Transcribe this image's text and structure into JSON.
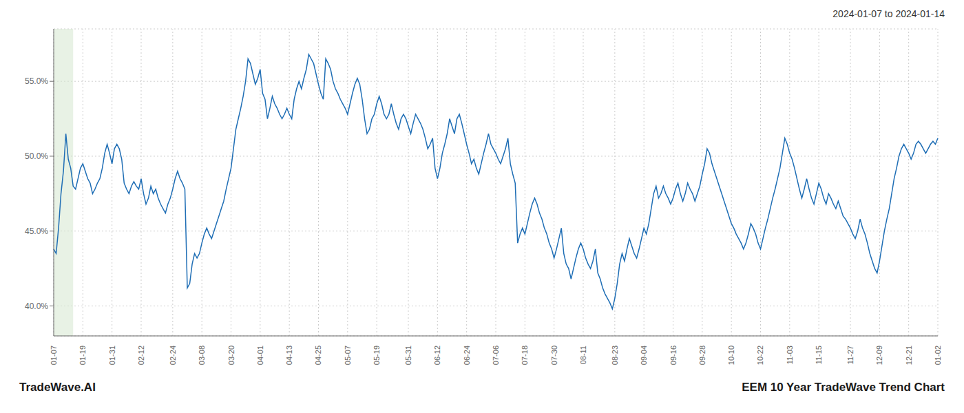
{
  "chart_data": {
    "type": "line",
    "title": "2024-01-07 to 2024-01-14",
    "annotations": [
      "TradeWave.AI",
      "EEM 10 Year TradeWave Trend Chart"
    ],
    "color": "#1f6eb5",
    "grid": true,
    "ylim": [
      38.0,
      58.5
    ],
    "yticks": [
      {
        "value": 40.0,
        "label": "40.0%"
      },
      {
        "value": 45.0,
        "label": "45.0%"
      },
      {
        "value": 50.0,
        "label": "50.0%"
      },
      {
        "value": 55.0,
        "label": "55.0%"
      }
    ],
    "highlight": {
      "start": 0,
      "end": 8,
      "color": "#d6e8d0"
    },
    "categories": [
      "01-07",
      null,
      null,
      null,
      null,
      null,
      null,
      null,
      null,
      null,
      null,
      null,
      "01-19",
      null,
      null,
      null,
      null,
      null,
      null,
      null,
      null,
      null,
      null,
      null,
      "01-31",
      null,
      null,
      null,
      null,
      null,
      null,
      null,
      null,
      null,
      null,
      null,
      "02-12",
      null,
      null,
      null,
      null,
      null,
      null,
      null,
      null,
      null,
      null,
      null,
      null,
      "02-24",
      null,
      null,
      null,
      null,
      null,
      null,
      null,
      null,
      null,
      null,
      null,
      "03-08",
      null,
      null,
      null,
      null,
      null,
      null,
      null,
      null,
      null,
      null,
      null,
      "03-20",
      null,
      null,
      null,
      null,
      null,
      null,
      null,
      null,
      null,
      null,
      null,
      "04-01",
      null,
      null,
      null,
      null,
      null,
      null,
      null,
      null,
      null,
      null,
      null,
      "04-13",
      null,
      null,
      null,
      null,
      null,
      null,
      null,
      null,
      null,
      null,
      null,
      "04-25",
      null,
      null,
      null,
      null,
      null,
      null,
      null,
      null,
      null,
      null,
      null,
      "05-07",
      null,
      null,
      null,
      null,
      null,
      null,
      null,
      null,
      null,
      null,
      null,
      "05-19",
      null,
      null,
      null,
      null,
      null,
      null,
      null,
      null,
      null,
      null,
      null,
      null,
      "05-31",
      null,
      null,
      null,
      null,
      null,
      null,
      null,
      null,
      null,
      null,
      null,
      "06-12",
      null,
      null,
      null,
      null,
      null,
      null,
      null,
      null,
      null,
      null,
      null,
      "06-24",
      null,
      null,
      null,
      null,
      null,
      null,
      null,
      null,
      null,
      null,
      null,
      "07-06",
      null,
      null,
      null,
      null,
      null,
      null,
      null,
      null,
      null,
      null,
      null,
      "07-18",
      null,
      null,
      null,
      null,
      null,
      null,
      null,
      null,
      null,
      null,
      null,
      "07-30",
      null,
      null,
      null,
      null,
      null,
      null,
      null,
      null,
      null,
      null,
      null,
      "08-11",
      null,
      null,
      null,
      null,
      null,
      null,
      null,
      null,
      null,
      null,
      null,
      null,
      "08-23",
      null,
      null,
      null,
      null,
      null,
      null,
      null,
      null,
      null,
      null,
      null,
      "09-04",
      null,
      null,
      null,
      null,
      null,
      null,
      null,
      null,
      null,
      null,
      null,
      "09-16",
      null,
      null,
      null,
      null,
      null,
      null,
      null,
      null,
      null,
      null,
      null,
      "09-28",
      null,
      null,
      null,
      null,
      null,
      null,
      null,
      null,
      null,
      null,
      null,
      "10-10",
      null,
      null,
      null,
      null,
      null,
      null,
      null,
      null,
      null,
      null,
      null,
      "10-22",
      null,
      null,
      null,
      null,
      null,
      null,
      null,
      null,
      null,
      null,
      null,
      "11-03",
      null,
      null,
      null,
      null,
      null,
      null,
      null,
      null,
      null,
      null,
      null,
      "11-15",
      null,
      null,
      null,
      null,
      null,
      null,
      null,
      null,
      null,
      null,
      null,
      null,
      "11-27",
      null,
      null,
      null,
      null,
      null,
      null,
      null,
      null,
      null,
      null,
      null,
      "12-09",
      null,
      null,
      null,
      null,
      null,
      null,
      null,
      null,
      null,
      null,
      null,
      "12-21",
      null,
      null,
      null,
      null,
      null,
      null,
      null,
      null,
      null,
      null,
      null,
      "01-02"
    ],
    "values": [
      43.8,
      43.5,
      45.2,
      47.5,
      49.0,
      51.5,
      49.8,
      49.2,
      48.0,
      47.8,
      48.5,
      49.2,
      49.5,
      49.0,
      48.5,
      48.2,
      47.5,
      47.8,
      48.2,
      48.5,
      49.2,
      50.2,
      50.8,
      50.2,
      49.5,
      50.5,
      50.8,
      50.5,
      49.8,
      48.2,
      47.8,
      47.5,
      48.0,
      48.3,
      48.0,
      47.8,
      48.5,
      47.5,
      46.8,
      47.2,
      48.0,
      47.5,
      47.8,
      47.2,
      46.8,
      46.5,
      46.2,
      46.8,
      47.2,
      47.8,
      48.5,
      49.0,
      48.5,
      48.2,
      47.8,
      41.2,
      41.5,
      42.8,
      43.5,
      43.2,
      43.5,
      44.2,
      44.8,
      45.2,
      44.8,
      44.5,
      45.0,
      45.5,
      46.0,
      46.5,
      47.0,
      47.8,
      48.5,
      49.2,
      50.5,
      51.8,
      52.5,
      53.2,
      54.0,
      55.0,
      56.5,
      56.2,
      55.5,
      54.8,
      55.2,
      55.8,
      54.2,
      53.8,
      52.5,
      53.2,
      54.0,
      53.5,
      53.2,
      52.8,
      52.5,
      52.8,
      53.2,
      52.8,
      52.5,
      53.8,
      54.5,
      55.0,
      54.5,
      55.2,
      55.8,
      56.8,
      56.5,
      56.2,
      55.5,
      54.8,
      54.2,
      53.8,
      56.5,
      56.2,
      55.8,
      55.0,
      54.5,
      54.2,
      53.8,
      53.5,
      53.2,
      52.8,
      53.5,
      54.2,
      54.8,
      55.2,
      54.8,
      53.8,
      52.5,
      51.5,
      51.8,
      52.5,
      52.8,
      53.5,
      54.0,
      53.5,
      52.8,
      52.5,
      52.8,
      53.5,
      52.8,
      52.2,
      51.8,
      52.5,
      52.8,
      52.5,
      52.0,
      51.5,
      52.2,
      52.8,
      52.5,
      52.2,
      51.8,
      51.2,
      50.5,
      50.8,
      51.2,
      49.2,
      48.5,
      49.2,
      50.2,
      50.8,
      51.5,
      52.5,
      52.0,
      51.5,
      52.5,
      52.8,
      52.2,
      51.5,
      50.8,
      50.2,
      49.5,
      49.8,
      49.2,
      48.8,
      49.5,
      50.2,
      50.8,
      51.5,
      50.8,
      50.5,
      50.2,
      49.8,
      49.5,
      50.0,
      50.5,
      51.2,
      49.5,
      48.8,
      48.2,
      44.2,
      44.8,
      45.2,
      44.8,
      45.5,
      46.2,
      46.8,
      47.2,
      46.8,
      46.2,
      45.8,
      45.2,
      44.8,
      44.2,
      43.8,
      43.2,
      43.8,
      44.5,
      45.2,
      43.5,
      42.8,
      42.5,
      41.8,
      42.5,
      43.2,
      43.8,
      44.2,
      43.8,
      43.2,
      42.8,
      42.5,
      43.0,
      43.8,
      42.2,
      41.8,
      41.2,
      40.8,
      40.5,
      40.2,
      39.8,
      40.5,
      41.5,
      42.8,
      43.5,
      43.0,
      43.8,
      44.5,
      44.0,
      43.5,
      43.2,
      43.8,
      44.5,
      45.2,
      44.8,
      45.5,
      46.5,
      47.5,
      48.0,
      47.2,
      47.5,
      48.0,
      47.5,
      47.2,
      46.8,
      47.2,
      47.8,
      48.2,
      47.5,
      47.0,
      47.5,
      48.2,
      47.8,
      47.5,
      47.0,
      47.5,
      48.0,
      48.8,
      49.5,
      50.5,
      50.2,
      49.5,
      49.0,
      48.5,
      48.0,
      47.5,
      47.0,
      46.5,
      46.0,
      45.5,
      45.2,
      44.8,
      44.5,
      44.2,
      43.8,
      44.2,
      44.8,
      45.5,
      45.2,
      44.8,
      44.2,
      43.8,
      44.5,
      45.2,
      45.8,
      46.5,
      47.2,
      47.8,
      48.5,
      49.2,
      50.2,
      51.2,
      50.8,
      50.2,
      49.8,
      49.2,
      48.5,
      47.8,
      47.2,
      47.8,
      48.5,
      47.8,
      47.2,
      46.8,
      47.5,
      48.2,
      47.8,
      47.2,
      46.8,
      47.5,
      47.2,
      46.8,
      46.5,
      47.0,
      46.5,
      46.0,
      45.8,
      45.5,
      45.2,
      44.8,
      44.5,
      45.0,
      45.8,
      45.2,
      44.8,
      44.2,
      43.5,
      43.0,
      42.5,
      42.2,
      43.0,
      44.0,
      45.0,
      45.8,
      46.5,
      47.5,
      48.5,
      49.2,
      50.0,
      50.5,
      50.8,
      50.5,
      50.2,
      49.8,
      50.2,
      50.8,
      51.0,
      50.8,
      50.5,
      50.2,
      50.5,
      50.8,
      51.0,
      50.8,
      51.2
    ]
  }
}
